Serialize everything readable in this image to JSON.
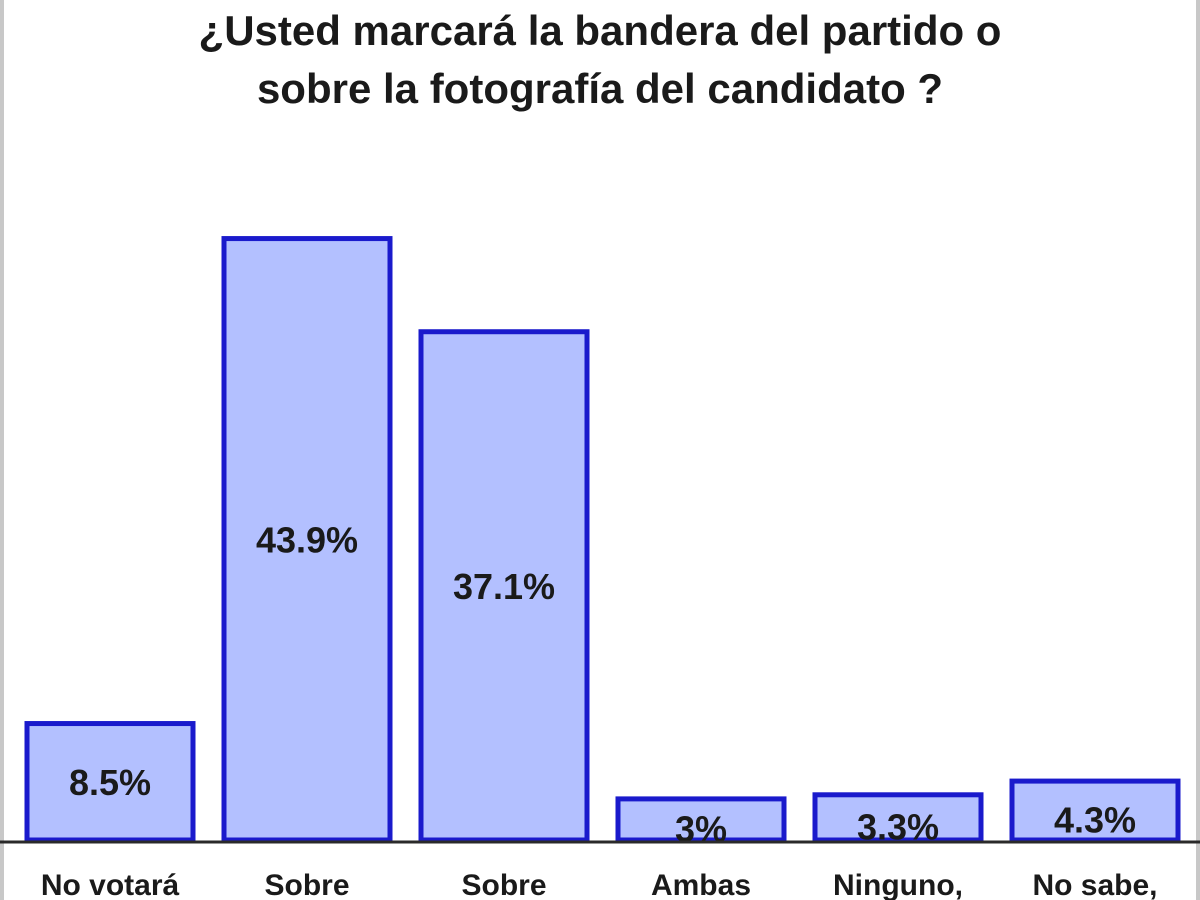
{
  "chart_data": {
    "type": "bar",
    "title_lines": [
      "¿Usted marcará la bandera del partido o",
      "sobre la fotografía del candidato ?"
    ],
    "categories": [
      "No votará",
      "Sobre",
      "Sobre",
      "Ambas",
      "Ninguno,",
      "No sabe,"
    ],
    "values": [
      8.5,
      43.9,
      37.1,
      3,
      3.3,
      4.3
    ],
    "data_labels": [
      "8.5%",
      "43.9%",
      "37.1%",
      "3%",
      "3.3%",
      "4.3%"
    ],
    "ylim": [
      0,
      50
    ],
    "grid": false,
    "legend": "none",
    "colors": {
      "bar_fill": "#b3c0ff",
      "bar_stroke": "#1a1acc",
      "baseline": "#2a2a2a",
      "text": "#1a1a1a"
    }
  }
}
